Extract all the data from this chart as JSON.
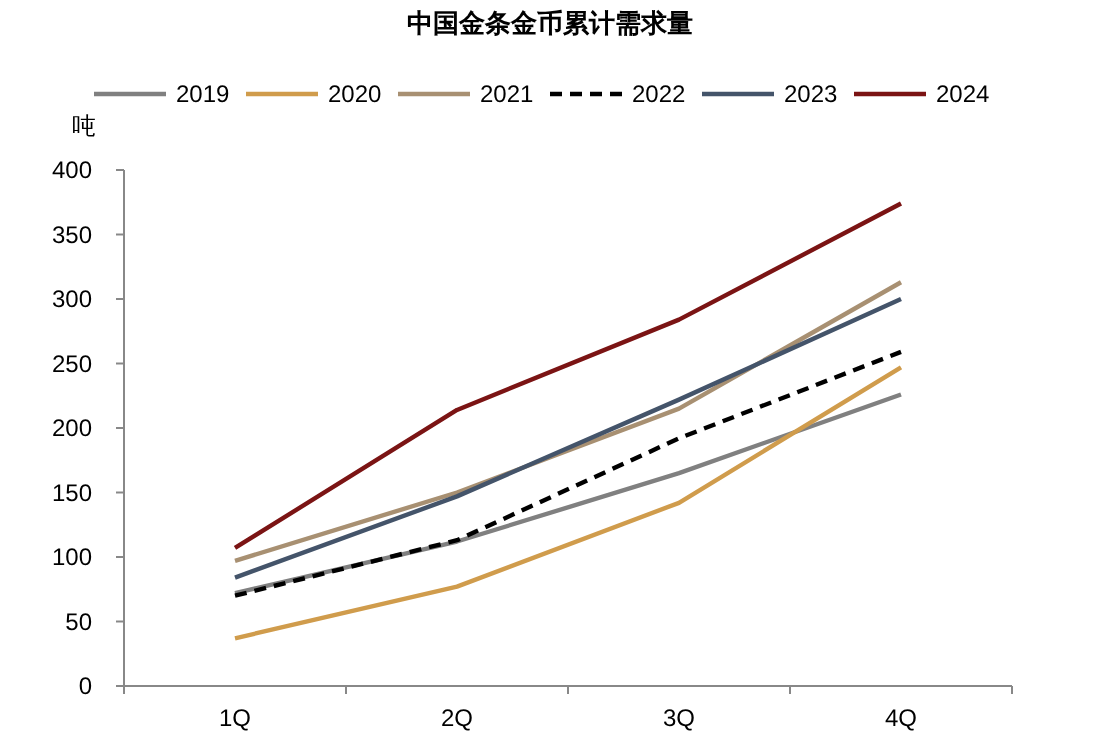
{
  "chart_data": {
    "type": "line",
    "title": "中国金条金币累计需求量",
    "ylabel": "吨",
    "categories": [
      "1Q",
      "2Q",
      "3Q",
      "4Q"
    ],
    "series": [
      {
        "name": "2019",
        "color": "#808080",
        "values": [
          72,
          112,
          165,
          226
        ]
      },
      {
        "name": "2020",
        "color": "#d09c4c",
        "values": [
          37,
          77,
          142,
          247
        ]
      },
      {
        "name": "2021",
        "color": "#a89072",
        "values": [
          97,
          150,
          215,
          313
        ]
      },
      {
        "name": "2022",
        "color": "#000000",
        "values": [
          70,
          113,
          192,
          259
        ],
        "line_style": "dashed"
      },
      {
        "name": "2023",
        "color": "#44546a",
        "values": [
          84,
          147,
          222,
          300
        ]
      },
      {
        "name": "2024",
        "color": "#7b1414",
        "values": [
          107,
          214,
          284,
          374
        ]
      }
    ],
    "ylim": [
      0,
      400
    ],
    "yticks": [
      0,
      50,
      100,
      150,
      200,
      250,
      300,
      350,
      400
    ],
    "grid": false,
    "legend": "top",
    "marker": "none",
    "line_style": "solid"
  }
}
